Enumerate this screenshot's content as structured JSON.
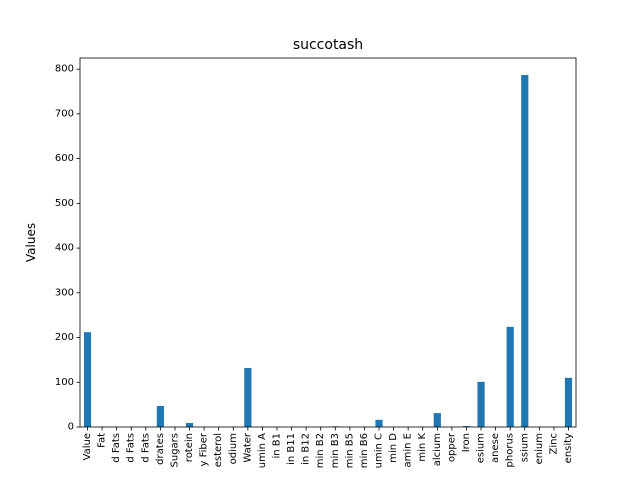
{
  "chart_data": {
    "type": "bar",
    "title": "succotash",
    "xlabel": "",
    "ylabel": "Values",
    "ylim": [
      0,
      825
    ],
    "yticks": [
      0,
      100,
      200,
      300,
      400,
      500,
      600,
      700,
      800
    ],
    "grid": false,
    "legend": "none",
    "bar_color": "#1f77b4",
    "categories": [
      "Value",
      "Fat",
      "d Fats",
      "d Fats",
      "d Fats",
      "drates",
      "Sugars",
      "rotein",
      "y Fiber",
      "esterol",
      "odium",
      "Water",
      "umin A",
      "in B1",
      "in B11",
      "in B12",
      "min B2",
      "min B3",
      "min B5",
      "min B6",
      "umin C",
      "min D",
      "amin E",
      "min K",
      "alcium",
      "opper",
      "Iron",
      "esium",
      "anese",
      "phorus",
      "ssium",
      "enium",
      "Zinc",
      "ensity"
    ],
    "values": [
      212,
      1,
      0.5,
      0.5,
      0.5,
      47,
      0.5,
      9,
      0.5,
      0,
      0.5,
      132,
      0.5,
      0.5,
      0,
      0,
      0.5,
      1.5,
      0.5,
      0.5,
      16,
      0,
      0.5,
      0.5,
      31,
      0.5,
      2,
      101,
      0.5,
      224,
      787,
      0.5,
      0.5,
      110
    ]
  }
}
